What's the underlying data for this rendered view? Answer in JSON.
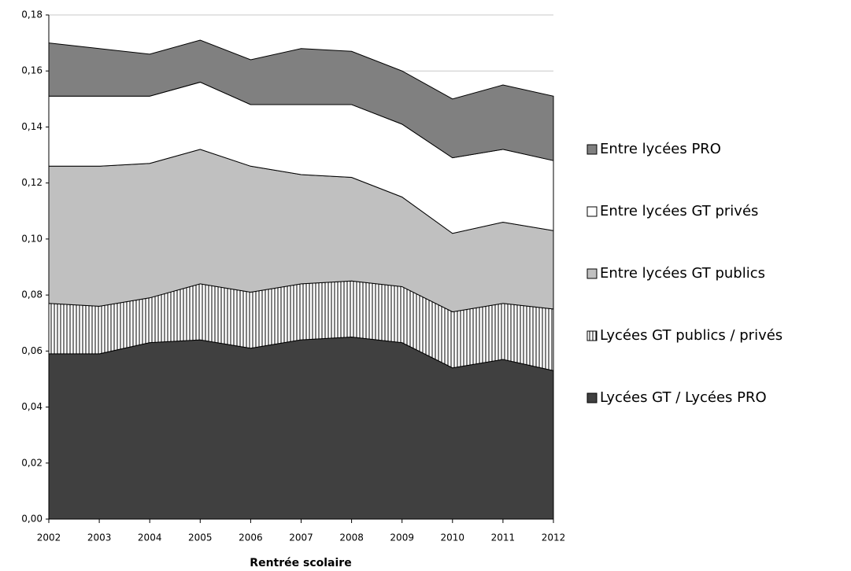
{
  "chart_data": {
    "type": "stacked_area",
    "x_label": "Rentrée scolaire",
    "categories": [
      "2002",
      "2003",
      "2004",
      "2005",
      "2006",
      "2007",
      "2008",
      "2009",
      "2010",
      "2011",
      "2012"
    ],
    "series": [
      {
        "name": "Lycées GT / Lycées PRO",
        "color": "#404040",
        "values": [
          0.059,
          0.059,
          0.063,
          0.064,
          0.061,
          0.064,
          0.065,
          0.063,
          0.054,
          0.057,
          0.053
        ]
      },
      {
        "name": "Lycées GT publics / privés",
        "color": "#ffffff",
        "hatch": "vertical",
        "values": [
          0.018,
          0.017,
          0.016,
          0.02,
          0.02,
          0.02,
          0.02,
          0.02,
          0.02,
          0.02,
          0.022
        ]
      },
      {
        "name": "Entre lycées GT publics",
        "color": "#c0c0c0",
        "values": [
          0.049,
          0.05,
          0.048,
          0.048,
          0.045,
          0.039,
          0.037,
          0.032,
          0.028,
          0.029,
          0.028
        ]
      },
      {
        "name": "Entre lycées GT privés",
        "color": "#ffffff",
        "values": [
          0.025,
          0.025,
          0.024,
          0.024,
          0.022,
          0.025,
          0.026,
          0.026,
          0.027,
          0.026,
          0.025
        ]
      },
      {
        "name": "Entre lycées PRO",
        "color": "#808080",
        "values": [
          0.019,
          0.017,
          0.015,
          0.015,
          0.016,
          0.02,
          0.019,
          0.019,
          0.021,
          0.023,
          0.023
        ]
      }
    ],
    "ylim": [
      0,
      0.18
    ],
    "yticks": [
      {
        "value": 0,
        "label": "0,00"
      },
      {
        "value": 0.02,
        "label": "0,02"
      },
      {
        "value": 0.04,
        "label": "0,04"
      },
      {
        "value": 0.06,
        "label": "0,06"
      },
      {
        "value": 0.08,
        "label": "0,08"
      },
      {
        "value": 0.1,
        "label": "0,10"
      },
      {
        "value": 0.12,
        "label": "0,12"
      },
      {
        "value": 0.14,
        "label": "0,14"
      },
      {
        "value": 0.16,
        "label": "0,16"
      },
      {
        "value": 0.18,
        "label": "0,18"
      }
    ],
    "grid": true,
    "legend": "right"
  }
}
